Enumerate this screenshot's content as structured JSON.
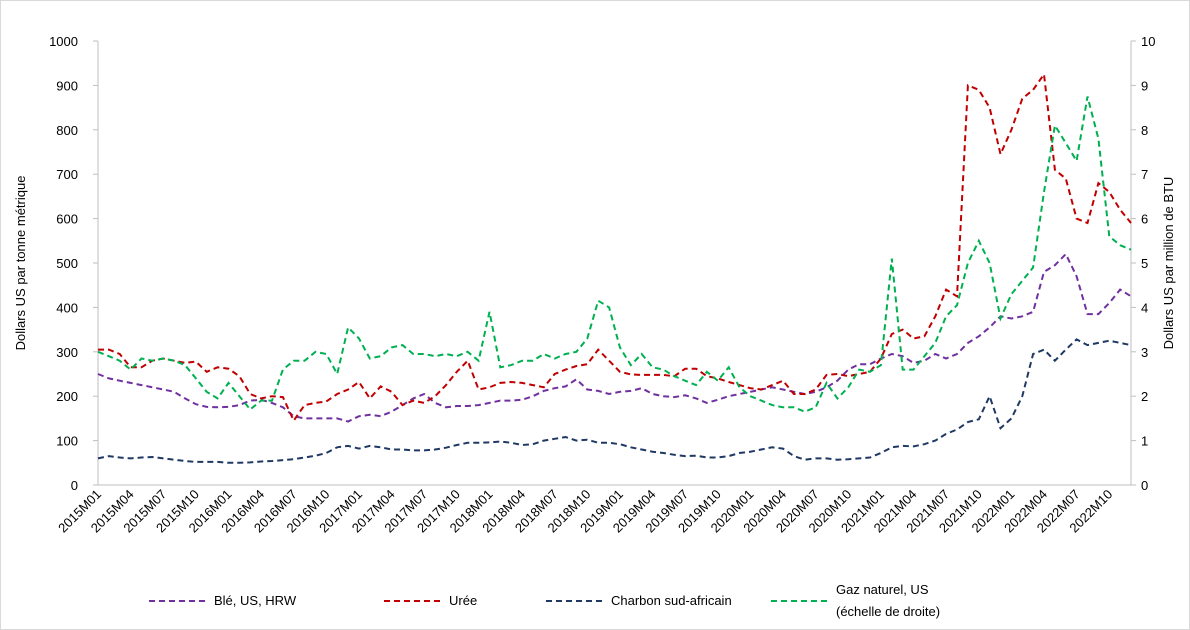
{
  "chart_data": {
    "type": "line",
    "y_label": "Dollars US par tonne métrique",
    "y2_label": "Dollars US par million de BTU",
    "categories": [
      "2015M01",
      null,
      null,
      "2015M04",
      null,
      null,
      "2015M07",
      null,
      null,
      "2015M10",
      null,
      null,
      "2016M01",
      null,
      null,
      "2016M04",
      null,
      null,
      "2016M07",
      null,
      null,
      "2016M10",
      null,
      null,
      "2017M01",
      null,
      null,
      "2017M04",
      null,
      null,
      "2017M07",
      null,
      null,
      "2017M10",
      null,
      null,
      "2018M01",
      null,
      null,
      "2018M04",
      null,
      null,
      "2018M07",
      null,
      null,
      "2018M10",
      null,
      null,
      "2019M01",
      null,
      null,
      "2019M04",
      null,
      null,
      "2019M07",
      null,
      null,
      "2019M10",
      null,
      null,
      "2020M01",
      null,
      null,
      "2020M04",
      null,
      null,
      "2020M07",
      null,
      null,
      "2020M10",
      null,
      null,
      "2021M01",
      null,
      null,
      "2021M04",
      null,
      null,
      "2021M07",
      null,
      null,
      "2021M10",
      null,
      null,
      "2022M01",
      null,
      null,
      "2022M04",
      null,
      null,
      "2022M07",
      null,
      null,
      "2022M10",
      null,
      null
    ],
    "ylim": [
      0,
      1000
    ],
    "yticks": [
      0,
      100,
      200,
      300,
      400,
      500,
      600,
      700,
      800,
      900,
      1000
    ],
    "y2lim": [
      0,
      10
    ],
    "y2ticks": [
      0,
      1,
      2,
      3,
      4,
      5,
      6,
      7,
      8,
      9,
      10
    ],
    "dashed": true,
    "series": [
      {
        "name": "Blé, US, HRW",
        "color": "#7030a0",
        "values": [
          250,
          240,
          235,
          230,
          225,
          220,
          215,
          210,
          195,
          182,
          176,
          175,
          176,
          180,
          190,
          192,
          185,
          175,
          155,
          150,
          150,
          150,
          150,
          143,
          155,
          158,
          155,
          165,
          180,
          195,
          205,
          185,
          175,
          178,
          178,
          180,
          185,
          190,
          190,
          192,
          200,
          212,
          218,
          222,
          238,
          215,
          212,
          205,
          210,
          212,
          218,
          205,
          200,
          198,
          202,
          195,
          185,
          192,
          200,
          205,
          210,
          215,
          220,
          215,
          210,
          205,
          210,
          220,
          235,
          260,
          272,
          272,
          285,
          295,
          290,
          275,
          280,
          295,
          285,
          295,
          320,
          335,
          355,
          380,
          375,
          380,
          390,
          480,
          495,
          520,
          470,
          385,
          385,
          410,
          440,
          425
        ]
      },
      {
        "name": "Urée",
        "color": "#c00000",
        "values": [
          305,
          305,
          295,
          265,
          265,
          280,
          285,
          280,
          275,
          278,
          255,
          265,
          262,
          245,
          205,
          195,
          200,
          198,
          145,
          180,
          185,
          188,
          205,
          215,
          232,
          195,
          222,
          210,
          180,
          190,
          185,
          200,
          225,
          255,
          280,
          215,
          220,
          230,
          232,
          230,
          225,
          220,
          250,
          260,
          268,
          272,
          305,
          280,
          255,
          249,
          248,
          248,
          248,
          245,
          262,
          262,
          245,
          240,
          232,
          225,
          218,
          215,
          225,
          235,
          205,
          205,
          215,
          248,
          250,
          245,
          250,
          255,
          285,
          340,
          350,
          330,
          335,
          380,
          440,
          425,
          900,
          890,
          850,
          745,
          800,
          870,
          890,
          925,
          710,
          690,
          600,
          590,
          680,
          660,
          620,
          590
        ]
      },
      {
        "name": "Charbon sud-africain",
        "color": "#1f3864",
        "values": [
          60,
          65,
          62,
          60,
          62,
          63,
          60,
          57,
          54,
          52,
          52,
          52,
          50,
          50,
          51,
          53,
          54,
          56,
          58,
          62,
          66,
          72,
          85,
          88,
          82,
          88,
          85,
          80,
          80,
          78,
          78,
          80,
          84,
          90,
          95,
          95,
          96,
          98,
          95,
          90,
          92,
          100,
          104,
          108,
          100,
          102,
          95,
          95,
          92,
          85,
          80,
          75,
          72,
          68,
          65,
          66,
          62,
          62,
          65,
          72,
          75,
          80,
          85,
          82,
          65,
          57,
          60,
          60,
          57,
          58,
          60,
          62,
          72,
          85,
          88,
          87,
          92,
          100,
          115,
          125,
          142,
          148,
          200,
          128,
          150,
          200,
          295,
          305,
          280,
          305,
          328,
          315,
          320,
          325,
          320,
          315
        ]
      },
      {
        "name": "Gaz naturel, US\n(échelle de droite)",
        "color": "#00b050",
        "axis": "y2",
        "values": [
          3.0,
          2.9,
          2.8,
          2.6,
          2.85,
          2.8,
          2.85,
          2.8,
          2.7,
          2.4,
          2.1,
          1.95,
          2.3,
          2.0,
          1.7,
          1.9,
          1.9,
          2.6,
          2.8,
          2.8,
          3.0,
          2.95,
          2.5,
          3.55,
          3.3,
          2.85,
          2.9,
          3.1,
          3.15,
          2.95,
          2.95,
          2.9,
          2.95,
          2.9,
          3.0,
          2.8,
          3.9,
          2.65,
          2.7,
          2.8,
          2.8,
          2.95,
          2.85,
          2.95,
          3.0,
          3.3,
          4.15,
          4.0,
          3.1,
          2.7,
          2.95,
          2.65,
          2.6,
          2.45,
          2.35,
          2.25,
          2.55,
          2.35,
          2.65,
          2.2,
          2.0,
          1.9,
          1.8,
          1.75,
          1.75,
          1.65,
          1.75,
          2.3,
          1.95,
          2.2,
          2.6,
          2.55,
          2.7,
          5.1,
          2.6,
          2.6,
          2.9,
          3.2,
          3.8,
          4.05,
          5.0,
          5.5,
          5.0,
          3.75,
          4.3,
          4.6,
          4.9,
          6.6,
          8.1,
          7.7,
          7.3,
          8.75,
          7.8,
          5.6,
          5.4,
          5.3
        ]
      }
    ]
  }
}
